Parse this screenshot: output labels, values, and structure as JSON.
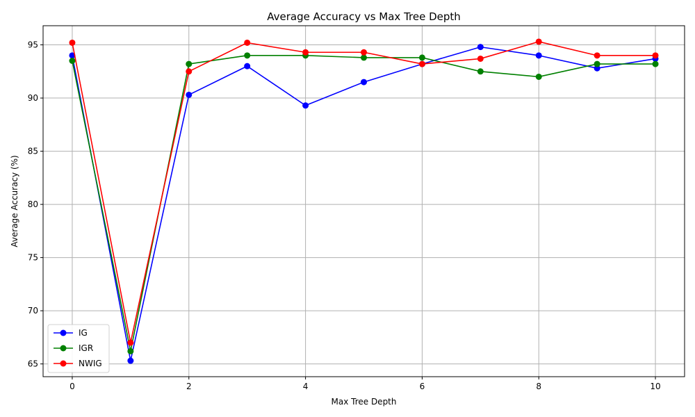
{
  "chart_data": {
    "type": "line",
    "title": "Average Accuracy vs Max Tree Depth",
    "xlabel": "Max Tree Depth",
    "ylabel": "Average Accuracy (%)",
    "x": [
      0,
      1,
      2,
      3,
      4,
      5,
      6,
      7,
      8,
      9,
      10
    ],
    "xlim": [
      -0.5,
      10.5
    ],
    "ylim": [
      63.8,
      96.8
    ],
    "xticks": [
      0,
      2,
      4,
      6,
      8,
      10
    ],
    "yticks": [
      65,
      70,
      75,
      80,
      85,
      90,
      95
    ],
    "grid": true,
    "legend_position": "lower-left",
    "series": [
      {
        "name": "IG",
        "color": "#0000ff",
        "values": [
          94.0,
          65.3,
          90.3,
          93.0,
          89.3,
          91.5,
          93.2,
          94.8,
          94.0,
          92.8,
          93.7
        ]
      },
      {
        "name": "IGR",
        "color": "#008000",
        "values": [
          93.5,
          66.2,
          93.2,
          94.0,
          94.0,
          93.8,
          93.8,
          92.5,
          92.0,
          93.2,
          93.2
        ]
      },
      {
        "name": "NWIG",
        "color": "#ff0000",
        "values": [
          95.2,
          67.0,
          92.5,
          95.2,
          94.3,
          94.3,
          93.2,
          93.7,
          95.3,
          94.0,
          94.0
        ]
      }
    ]
  }
}
